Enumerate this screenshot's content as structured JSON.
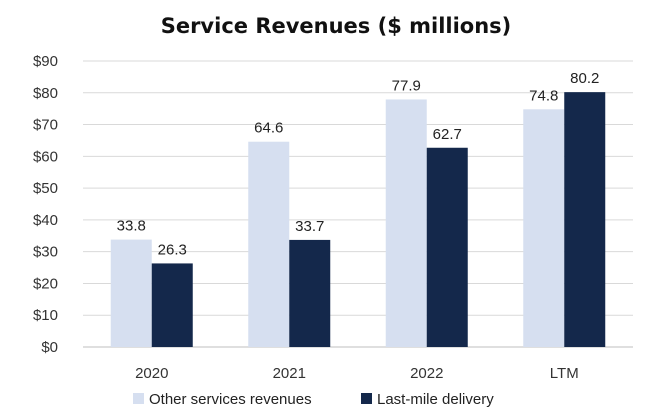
{
  "chart_data": {
    "type": "bar",
    "title": "Service Revenues ($ millions)",
    "categories": [
      "2020",
      "2021",
      "2022",
      "LTM"
    ],
    "series": [
      {
        "name": "Other services revenues",
        "values": [
          33.8,
          64.6,
          77.9,
          74.8
        ],
        "color": "#d6dff0"
      },
      {
        "name": "Last-mile delivery",
        "values": [
          26.3,
          33.7,
          62.7,
          80.2
        ],
        "color": "#14284b"
      }
    ],
    "ylim": [
      0,
      90
    ],
    "yticks": [
      0,
      10,
      20,
      30,
      40,
      50,
      60,
      70,
      80,
      90
    ],
    "ytick_labels": [
      "$0",
      "$10",
      "$20",
      "$30",
      "$40",
      "$50",
      "$60",
      "$70",
      "$80",
      "$90"
    ],
    "grid": true,
    "legend_position": "bottom"
  }
}
